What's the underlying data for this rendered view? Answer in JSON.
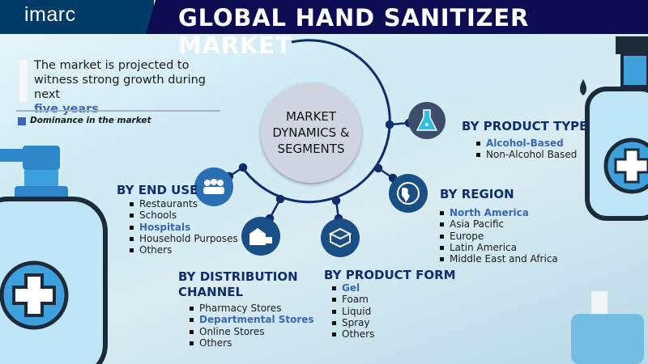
{
  "header": {
    "logo": "imarc",
    "title": "GLOBAL HAND SANITIZER MARKET"
  },
  "intro": {
    "line1": "The market is projected to witness strong growth during next",
    "highlight": "five years"
  },
  "legend": {
    "label": "Dominance in the market",
    "color": "#3a67b5"
  },
  "center": {
    "line1": "MARKET",
    "line2": "DYNAMICS &",
    "line3": "SEGMENTS"
  },
  "segments": {
    "product_type": {
      "title": "BY PRODUCT TYPE",
      "icon": "flask-icon",
      "items": [
        {
          "label": "Alcohol-Based",
          "dominant": true
        },
        {
          "label": "Non-Alcohol Based",
          "dominant": false
        }
      ]
    },
    "region": {
      "title": "BY REGION",
      "icon": "globe-icon",
      "items": [
        {
          "label": "North America",
          "dominant": true
        },
        {
          "label": "Asia Pacific"
        },
        {
          "label": "Europe"
        },
        {
          "label": "Latin America"
        },
        {
          "label": "Middle East and Africa"
        }
      ]
    },
    "product_form": {
      "title": "BY PRODUCT FORM",
      "icon": "boxes-icon",
      "items": [
        {
          "label": "Gel",
          "dominant": true
        },
        {
          "label": "Foam"
        },
        {
          "label": "Liquid"
        },
        {
          "label": "Spray"
        },
        {
          "label": "Others"
        }
      ]
    },
    "distribution": {
      "title_line1": "BY DISTRIBUTION",
      "title_line2": "CHANNEL",
      "icon": "warehouse-truck-icon",
      "items": [
        {
          "label": "Pharmacy Stores"
        },
        {
          "label": "Departmental Stores",
          "dominant": true
        },
        {
          "label": "Online Stores"
        },
        {
          "label": "Others"
        }
      ]
    },
    "end_use": {
      "title": "BY END USE",
      "icon": "people-icon",
      "items": [
        {
          "label": "Restaurants"
        },
        {
          "label": "Schools"
        },
        {
          "label": "Hospitals",
          "dominant": true
        },
        {
          "label": "Household Purposes"
        },
        {
          "label": "Others"
        }
      ]
    }
  },
  "colors": {
    "header_left": "#003a66",
    "header_right": "#0d0b52",
    "heading": "#0f2d6b",
    "highlight": "#3a67b5"
  }
}
